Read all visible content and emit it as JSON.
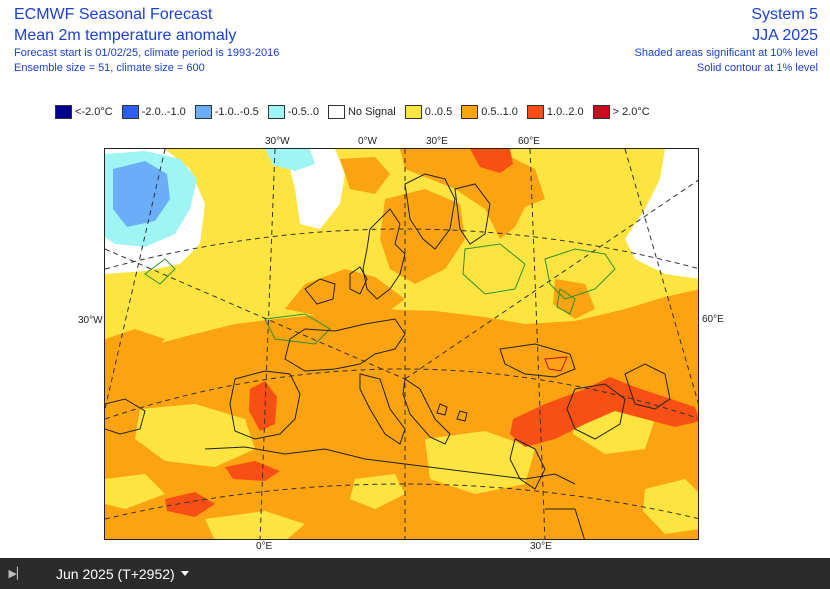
{
  "header": {
    "title": "ECMWF Seasonal Forecast",
    "subtitle": "Mean 2m temperature anomaly",
    "line1": "Forecast start is 01/02/25, climate period is 1993-2016",
    "line2": "Ensemble size = 51, climate size = 600",
    "system": "System 5",
    "season": "JJA 2025",
    "note1": "Shaded areas significant at 10% level",
    "note2": "Solid contour at 1% level"
  },
  "legend": [
    {
      "label": "<-2.0°C",
      "color": "#00008f"
    },
    {
      "label": "-2.0..-1.0",
      "color": "#2f5df5"
    },
    {
      "label": "-1.0..-0.5",
      "color": "#6aaef7"
    },
    {
      "label": "-0.5..0",
      "color": "#9ff4f4"
    },
    {
      "label": "No Signal",
      "color": "#ffffff"
    },
    {
      "label": "0..0.5",
      "color": "#fde440"
    },
    {
      "label": "0.5..1.0",
      "color": "#fca312"
    },
    {
      "label": "1.0..2.0",
      "color": "#f84f14"
    },
    {
      "label": "> 2.0°C",
      "color": "#cc0a1e"
    }
  ],
  "graticule_labels": {
    "top": [
      "30°W",
      "0°W",
      "30°E",
      "60°E"
    ],
    "left": "30°W",
    "right": "60°E",
    "bottom": [
      "0°E",
      "30°E"
    ]
  },
  "controls": {
    "period": "Jun 2025 (T+2952)",
    "play_icon": "skip-icon"
  }
}
